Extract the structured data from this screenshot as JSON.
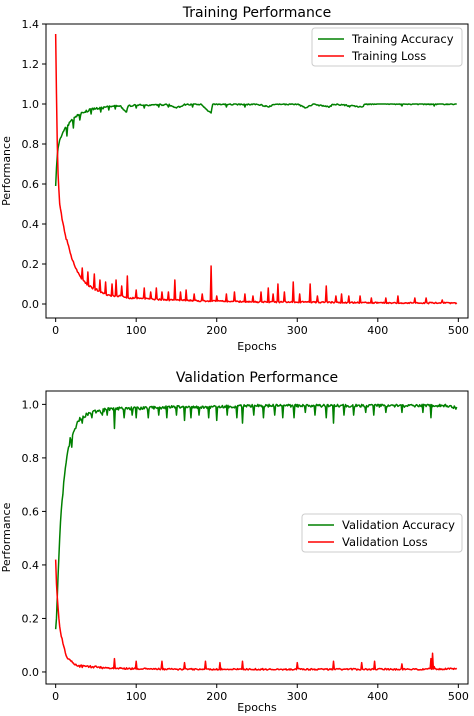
{
  "chart_data": [
    {
      "type": "line",
      "title": "Training Performance",
      "xlabel": "Epochs",
      "ylabel": "Performance",
      "xlim": [
        -12,
        512
      ],
      "ylim": [
        -0.07,
        1.4
      ],
      "xticks": [
        0,
        100,
        200,
        300,
        400,
        500
      ],
      "yticks": [
        0.0,
        0.2,
        0.4,
        0.6,
        0.8,
        1.0,
        1.2,
        1.4
      ],
      "legend_position": "top-right",
      "grid": false,
      "series": [
        {
          "name": "Training Accuracy",
          "color": "#008000",
          "points": [
            [
              0,
              0.59
            ],
            [
              1,
              0.68
            ],
            [
              2,
              0.74
            ],
            [
              3,
              0.78
            ],
            [
              5,
              0.82
            ],
            [
              8,
              0.85
            ],
            [
              12,
              0.88
            ],
            [
              16,
              0.9
            ],
            [
              20,
              0.92
            ],
            [
              25,
              0.94
            ],
            [
              30,
              0.95
            ],
            [
              35,
              0.96
            ],
            [
              40,
              0.97
            ],
            [
              45,
              0.975
            ],
            [
              50,
              0.98
            ],
            [
              60,
              0.985
            ],
            [
              70,
              0.99
            ],
            [
              80,
              0.99
            ],
            [
              88,
              0.96
            ],
            [
              90,
              0.99
            ],
            [
              100,
              0.995
            ],
            [
              120,
              0.995
            ],
            [
              140,
              0.997
            ],
            [
              150,
              0.98
            ],
            [
              160,
              0.997
            ],
            [
              180,
              0.998
            ],
            [
              193,
              0.955
            ],
            [
              195,
              0.998
            ],
            [
              220,
              0.999
            ],
            [
              250,
              0.999
            ],
            [
              265,
              0.985
            ],
            [
              270,
              0.999
            ],
            [
              300,
              0.999
            ],
            [
              310,
              0.98
            ],
            [
              320,
              0.999
            ],
            [
              340,
              0.985
            ],
            [
              345,
              0.999
            ],
            [
              380,
              0.985
            ],
            [
              385,
              1.0
            ],
            [
              420,
              1.0
            ],
            [
              460,
              1.0
            ],
            [
              498,
              1.0
            ]
          ],
          "noise": 0.012,
          "spikes": [
            [
              14,
              0.84
            ],
            [
              22,
              0.88
            ],
            [
              30,
              0.92
            ],
            [
              44,
              0.95
            ],
            [
              56,
              0.96
            ],
            [
              66,
              0.97
            ],
            [
              74,
              0.975
            ],
            [
              88,
              0.96
            ],
            [
              100,
              0.98
            ],
            [
              110,
              0.98
            ],
            [
              128,
              0.985
            ],
            [
              140,
              0.985
            ],
            [
              150,
              0.98
            ],
            [
              170,
              0.985
            ],
            [
              193,
              0.955
            ],
            [
              212,
              0.985
            ],
            [
              235,
              0.985
            ],
            [
              265,
              0.985
            ],
            [
              310,
              0.98
            ],
            [
              340,
              0.985
            ],
            [
              365,
              0.985
            ],
            [
              380,
              0.985
            ],
            [
              430,
              0.99
            ],
            [
              470,
              0.99
            ]
          ]
        },
        {
          "name": "Training Loss",
          "color": "#ff0000",
          "points": [
            [
              0,
              1.35
            ],
            [
              1,
              1.05
            ],
            [
              2,
              0.8
            ],
            [
              3,
              0.65
            ],
            [
              4,
              0.57
            ],
            [
              5,
              0.5
            ],
            [
              7,
              0.45
            ],
            [
              9,
              0.4
            ],
            [
              12,
              0.34
            ],
            [
              15,
              0.3
            ],
            [
              18,
              0.25
            ],
            [
              22,
              0.21
            ],
            [
              26,
              0.17
            ],
            [
              30,
              0.14
            ],
            [
              35,
              0.11
            ],
            [
              40,
              0.09
            ],
            [
              50,
              0.07
            ],
            [
              60,
              0.05
            ],
            [
              70,
              0.04
            ],
            [
              80,
              0.04
            ],
            [
              90,
              0.03
            ],
            [
              100,
              0.03
            ],
            [
              120,
              0.025
            ],
            [
              140,
              0.02
            ],
            [
              160,
              0.02
            ],
            [
              180,
              0.015
            ],
            [
              200,
              0.015
            ],
            [
              250,
              0.01
            ],
            [
              300,
              0.01
            ],
            [
              350,
              0.008
            ],
            [
              400,
              0.006
            ],
            [
              450,
              0.005
            ],
            [
              498,
              0.005
            ]
          ],
          "noise": 0.012,
          "spikes": [
            [
              33,
              0.18
            ],
            [
              40,
              0.16
            ],
            [
              48,
              0.15
            ],
            [
              55,
              0.12
            ],
            [
              62,
              0.11
            ],
            [
              70,
              0.1
            ],
            [
              75,
              0.12
            ],
            [
              82,
              0.09
            ],
            [
              89,
              0.14
            ],
            [
              100,
              0.07
            ],
            [
              110,
              0.08
            ],
            [
              118,
              0.06
            ],
            [
              125,
              0.08
            ],
            [
              132,
              0.06
            ],
            [
              140,
              0.06
            ],
            [
              148,
              0.12
            ],
            [
              155,
              0.06
            ],
            [
              162,
              0.07
            ],
            [
              172,
              0.05
            ],
            [
              182,
              0.05
            ],
            [
              193,
              0.19
            ],
            [
              200,
              0.04
            ],
            [
              212,
              0.05
            ],
            [
              222,
              0.06
            ],
            [
              235,
              0.05
            ],
            [
              245,
              0.04
            ],
            [
              255,
              0.06
            ],
            [
              264,
              0.08
            ],
            [
              270,
              0.05
            ],
            [
              276,
              0.1
            ],
            [
              284,
              0.06
            ],
            [
              295,
              0.11
            ],
            [
              303,
              0.05
            ],
            [
              316,
              0.1
            ],
            [
              325,
              0.04
            ],
            [
              336,
              0.09
            ],
            [
              348,
              0.04
            ],
            [
              355,
              0.05
            ],
            [
              364,
              0.04
            ],
            [
              378,
              0.04
            ],
            [
              392,
              0.03
            ],
            [
              410,
              0.03
            ],
            [
              425,
              0.04
            ],
            [
              446,
              0.03
            ],
            [
              460,
              0.03
            ],
            [
              480,
              0.02
            ]
          ]
        }
      ]
    },
    {
      "type": "line",
      "title": "Validation Performance",
      "xlabel": "Epochs",
      "ylabel": "Performance",
      "xlim": [
        -12,
        512
      ],
      "ylim": [
        -0.045,
        1.05
      ],
      "xticks": [
        0,
        100,
        200,
        300,
        400,
        500
      ],
      "yticks": [
        0.0,
        0.2,
        0.4,
        0.6,
        0.8,
        1.0
      ],
      "legend_position": "center-right",
      "grid": false,
      "series": [
        {
          "name": "Validation Accuracy",
          "color": "#008000",
          "points": [
            [
              0,
              0.16
            ],
            [
              1,
              0.2
            ],
            [
              2,
              0.28
            ],
            [
              3,
              0.36
            ],
            [
              4,
              0.43
            ],
            [
              5,
              0.5
            ],
            [
              6,
              0.56
            ],
            [
              8,
              0.64
            ],
            [
              10,
              0.71
            ],
            [
              12,
              0.77
            ],
            [
              15,
              0.83
            ],
            [
              18,
              0.87
            ],
            [
              22,
              0.9
            ],
            [
              26,
              0.93
            ],
            [
              30,
              0.95
            ],
            [
              35,
              0.96
            ],
            [
              40,
              0.97
            ],
            [
              50,
              0.975
            ],
            [
              60,
              0.98
            ],
            [
              80,
              0.985
            ],
            [
              100,
              0.985
            ],
            [
              150,
              0.99
            ],
            [
              200,
              0.99
            ],
            [
              250,
              0.995
            ],
            [
              300,
              0.995
            ],
            [
              350,
              0.995
            ],
            [
              400,
              0.995
            ],
            [
              450,
              0.995
            ],
            [
              490,
              0.995
            ],
            [
              498,
              0.985
            ]
          ],
          "noise": 0.018,
          "spikes": [
            [
              20,
              0.84
            ],
            [
              33,
              0.93
            ],
            [
              45,
              0.95
            ],
            [
              58,
              0.96
            ],
            [
              64,
              0.96
            ],
            [
              73,
              0.91
            ],
            [
              85,
              0.95
            ],
            [
              95,
              0.96
            ],
            [
              100,
              0.95
            ],
            [
              115,
              0.95
            ],
            [
              128,
              0.96
            ],
            [
              138,
              0.95
            ],
            [
              150,
              0.96
            ],
            [
              160,
              0.94
            ],
            [
              168,
              0.95
            ],
            [
              178,
              0.96
            ],
            [
              190,
              0.95
            ],
            [
              200,
              0.94
            ],
            [
              213,
              0.96
            ],
            [
              225,
              0.95
            ],
            [
              232,
              0.93
            ],
            [
              246,
              0.96
            ],
            [
              258,
              0.95
            ],
            [
              272,
              0.96
            ],
            [
              282,
              0.95
            ],
            [
              296,
              0.95
            ],
            [
              310,
              0.97
            ],
            [
              322,
              0.96
            ],
            [
              336,
              0.95
            ],
            [
              345,
              0.93
            ],
            [
              358,
              0.96
            ],
            [
              370,
              0.96
            ],
            [
              385,
              0.97
            ],
            [
              395,
              0.96
            ],
            [
              410,
              0.97
            ],
            [
              430,
              0.97
            ],
            [
              456,
              0.97
            ],
            [
              466,
              0.95
            ]
          ]
        },
        {
          "name": "Validation Loss",
          "color": "#ff0000",
          "points": [
            [
              0,
              0.42
            ],
            [
              1,
              0.33
            ],
            [
              2,
              0.28
            ],
            [
              3,
              0.24
            ],
            [
              4,
              0.2
            ],
            [
              5,
              0.17
            ],
            [
              6,
              0.15
            ],
            [
              8,
              0.12
            ],
            [
              10,
              0.09
            ],
            [
              12,
              0.07
            ],
            [
              15,
              0.05
            ],
            [
              20,
              0.035
            ],
            [
              25,
              0.025
            ],
            [
              30,
              0.02
            ],
            [
              40,
              0.018
            ],
            [
              60,
              0.015
            ],
            [
              100,
              0.012
            ],
            [
              150,
              0.01
            ],
            [
              200,
              0.01
            ],
            [
              250,
              0.01
            ],
            [
              300,
              0.01
            ],
            [
              350,
              0.01
            ],
            [
              400,
              0.01
            ],
            [
              450,
              0.01
            ],
            [
              498,
              0.012
            ]
          ],
          "noise": 0.01,
          "spikes": [
            [
              73,
              0.05
            ],
            [
              100,
              0.04
            ],
            [
              132,
              0.04
            ],
            [
              160,
              0.035
            ],
            [
              186,
              0.04
            ],
            [
              204,
              0.035
            ],
            [
              232,
              0.04
            ],
            [
              300,
              0.035
            ],
            [
              345,
              0.04
            ],
            [
              380,
              0.035
            ],
            [
              396,
              0.04
            ],
            [
              430,
              0.03
            ],
            [
              466,
              0.05
            ],
            [
              468,
              0.07
            ],
            [
              470,
              0.02
            ]
          ]
        }
      ]
    }
  ]
}
